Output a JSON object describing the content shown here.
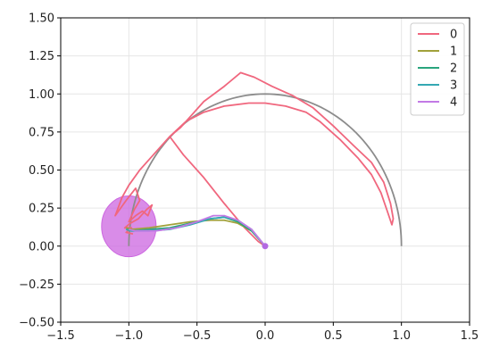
{
  "chart_data": {
    "type": "line",
    "title": "",
    "xlabel": "",
    "ylabel": "",
    "xlim": [
      -1.5,
      1.5
    ],
    "ylim": [
      -0.5,
      1.5
    ],
    "x_ticks": [
      -1.5,
      -1.0,
      -0.5,
      0.0,
      0.5,
      1.0,
      1.5
    ],
    "x_tick_labels": [
      "−1.5",
      "−1.0",
      "−0.5",
      "0.0",
      "0.5",
      "1.0",
      "1.5"
    ],
    "y_ticks": [
      -0.5,
      -0.25,
      0.0,
      0.25,
      0.5,
      0.75,
      1.0,
      1.25,
      1.5
    ],
    "y_tick_labels": [
      "−0.50",
      "−0.25",
      "0.00",
      "0.25",
      "0.50",
      "0.75",
      "1.00",
      "1.25",
      "1.50"
    ],
    "grid": true,
    "legend_position": "top-right",
    "reference_arc": {
      "color": "#8c8c8c",
      "center": [
        0,
        0
      ],
      "radius": 1.0,
      "from_deg": 0,
      "to_deg": 180
    },
    "goal_ellipse": {
      "center": [
        -1.0,
        0.13
      ],
      "radius_x": 0.2,
      "radius_y": 0.2,
      "color": "#cc66e0"
    },
    "start_point": {
      "x": 0.0,
      "y": 0.0,
      "color": "#b36ae2"
    },
    "series": [
      {
        "name": "0",
        "color": "#f0677e",
        "points": [
          [
            0.0,
            0.0
          ],
          [
            -0.05,
            0.03
          ],
          [
            -0.15,
            0.12
          ],
          [
            -0.3,
            0.28
          ],
          [
            -0.45,
            0.45
          ],
          [
            -0.6,
            0.6
          ],
          [
            -0.7,
            0.72
          ],
          [
            -0.62,
            0.78
          ],
          [
            -0.55,
            0.85
          ],
          [
            -0.45,
            0.95
          ],
          [
            -0.3,
            1.05
          ],
          [
            -0.18,
            1.14
          ],
          [
            -0.08,
            1.11
          ],
          [
            0.05,
            1.05
          ],
          [
            0.2,
            0.99
          ],
          [
            0.35,
            0.91
          ],
          [
            0.5,
            0.79
          ],
          [
            0.65,
            0.66
          ],
          [
            0.78,
            0.55
          ],
          [
            0.87,
            0.42
          ],
          [
            0.92,
            0.28
          ],
          [
            0.94,
            0.18
          ],
          [
            0.93,
            0.14
          ],
          [
            0.9,
            0.22
          ],
          [
            0.85,
            0.35
          ],
          [
            0.78,
            0.47
          ],
          [
            0.68,
            0.58
          ],
          [
            0.55,
            0.7
          ],
          [
            0.4,
            0.82
          ],
          [
            0.3,
            0.88
          ],
          [
            0.15,
            0.92
          ],
          [
            0.0,
            0.94
          ],
          [
            -0.12,
            0.94
          ],
          [
            -0.3,
            0.92
          ],
          [
            -0.45,
            0.88
          ],
          [
            -0.58,
            0.82
          ],
          [
            -0.7,
            0.72
          ],
          [
            -0.82,
            0.6
          ],
          [
            -0.92,
            0.5
          ],
          [
            -1.0,
            0.4
          ],
          [
            -1.05,
            0.32
          ],
          [
            -1.1,
            0.2
          ],
          [
            -1.02,
            0.3
          ],
          [
            -0.95,
            0.38
          ],
          [
            -0.92,
            0.3
          ],
          [
            -0.96,
            0.24
          ],
          [
            -1.0,
            0.16
          ],
          [
            -0.95,
            0.2
          ],
          [
            -0.9,
            0.23
          ],
          [
            -0.86,
            0.2
          ],
          [
            -0.83,
            0.27
          ],
          [
            -0.87,
            0.24
          ],
          [
            -0.93,
            0.18
          ],
          [
            -0.99,
            0.15
          ],
          [
            -1.03,
            0.12
          ],
          [
            -0.98,
            0.12
          ],
          [
            -1.02,
            0.09
          ],
          [
            -0.97,
            0.08
          ]
        ]
      },
      {
        "name": "1",
        "color": "#a1a13a",
        "points": [
          [
            0.0,
            0.0
          ],
          [
            -0.1,
            0.1
          ],
          [
            -0.2,
            0.15
          ],
          [
            -0.3,
            0.17
          ],
          [
            -0.4,
            0.17
          ],
          [
            -0.55,
            0.16
          ],
          [
            -0.7,
            0.14
          ],
          [
            -0.85,
            0.12
          ],
          [
            -0.98,
            0.11
          ],
          [
            -1.02,
            0.12
          ]
        ]
      },
      {
        "name": "2",
        "color": "#2aa57d",
        "points": [
          [
            0.0,
            0.0
          ],
          [
            -0.1,
            0.1
          ],
          [
            -0.2,
            0.16
          ],
          [
            -0.3,
            0.19
          ],
          [
            -0.4,
            0.18
          ],
          [
            -0.55,
            0.15
          ],
          [
            -0.7,
            0.12
          ],
          [
            -0.85,
            0.11
          ],
          [
            -0.98,
            0.1
          ],
          [
            -1.02,
            0.11
          ]
        ]
      },
      {
        "name": "3",
        "color": "#34a8b3",
        "points": [
          [
            0.0,
            0.0
          ],
          [
            -0.1,
            0.11
          ],
          [
            -0.2,
            0.17
          ],
          [
            -0.3,
            0.19
          ],
          [
            -0.4,
            0.18
          ],
          [
            -0.55,
            0.14
          ],
          [
            -0.7,
            0.11
          ],
          [
            -0.85,
            0.1
          ],
          [
            -0.98,
            0.1
          ],
          [
            -1.02,
            0.11
          ]
        ]
      },
      {
        "name": "4",
        "color": "#c27ae5",
        "points": [
          [
            0.0,
            0.0
          ],
          [
            -0.1,
            0.11
          ],
          [
            -0.2,
            0.17
          ],
          [
            -0.3,
            0.2
          ],
          [
            -0.38,
            0.2
          ],
          [
            -0.5,
            0.16
          ],
          [
            -0.65,
            0.12
          ],
          [
            -0.8,
            0.1
          ],
          [
            -0.95,
            0.1
          ],
          [
            -1.0,
            0.11
          ]
        ]
      }
    ]
  }
}
